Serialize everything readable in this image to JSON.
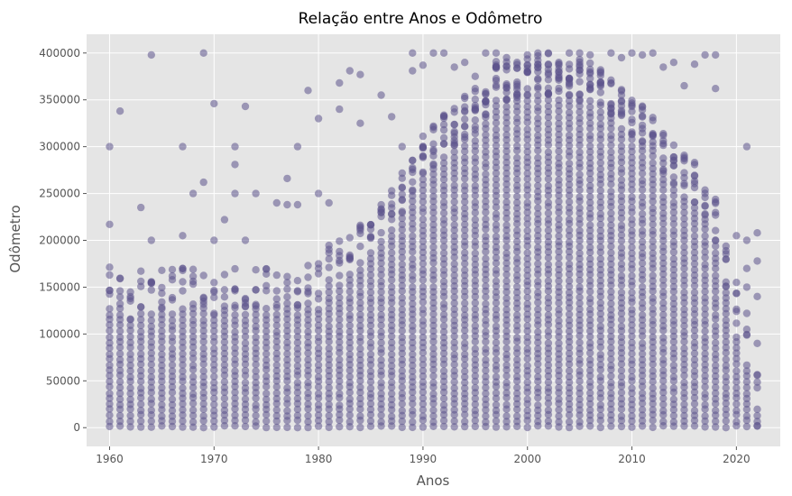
{
  "chart_data": {
    "type": "scatter",
    "title": "Relação entre Anos e Odômetro",
    "xlabel": "Anos",
    "ylabel": "Odômetro",
    "xlim": [
      1957.8,
      2024.2
    ],
    "ylim": [
      -20000,
      420000
    ],
    "xticks": [
      1960,
      1970,
      1980,
      1990,
      2000,
      2010,
      2020
    ],
    "yticks": [
      0,
      50000,
      100000,
      150000,
      200000,
      250000,
      300000,
      350000,
      400000
    ],
    "xtick_labels": [
      "1960",
      "1970",
      "1980",
      "1990",
      "2000",
      "2010",
      "2020"
    ],
    "ytick_labels": [
      "0",
      "50000",
      "100000",
      "150000",
      "200000",
      "250000",
      "300000",
      "350000",
      "400000"
    ],
    "grid": true,
    "style": "ggplot",
    "marker_color": "#5c548c",
    "marker_alpha": 0.55,
    "series": [
      {
        "column_ranges": [
          {
            "year": 1960,
            "max": 130000
          },
          {
            "year": 1961,
            "max": 128000
          },
          {
            "year": 1962,
            "max": 115000
          },
          {
            "year": 1963,
            "max": 125000
          },
          {
            "year": 1964,
            "max": 125000
          },
          {
            "year": 1965,
            "max": 128000
          },
          {
            "year": 1966,
            "max": 125000
          },
          {
            "year": 1967,
            "max": 128000
          },
          {
            "year": 1968,
            "max": 128000
          },
          {
            "year": 1969,
            "max": 128000
          },
          {
            "year": 1970,
            "max": 120000
          },
          {
            "year": 1971,
            "max": 125000
          },
          {
            "year": 1972,
            "max": 128000
          },
          {
            "year": 1973,
            "max": 125000
          },
          {
            "year": 1974,
            "max": 128000
          },
          {
            "year": 1975,
            "max": 130000
          },
          {
            "year": 1976,
            "max": 125000
          },
          {
            "year": 1977,
            "max": 128000
          },
          {
            "year": 1978,
            "max": 130000
          },
          {
            "year": 1979,
            "max": 135000
          },
          {
            "year": 1980,
            "max": 130000
          },
          {
            "year": 1981,
            "max": 150000
          },
          {
            "year": 1982,
            "max": 155000
          },
          {
            "year": 1983,
            "max": 165000
          },
          {
            "year": 1984,
            "max": 175000
          },
          {
            "year": 1985,
            "max": 190000
          },
          {
            "year": 1986,
            "max": 200000
          },
          {
            "year": 1987,
            "max": 210000
          },
          {
            "year": 1988,
            "max": 230000
          },
          {
            "year": 1989,
            "max": 250000
          },
          {
            "year": 1990,
            "max": 270000
          },
          {
            "year": 1991,
            "max": 280000
          },
          {
            "year": 1992,
            "max": 290000
          },
          {
            "year": 1993,
            "max": 300000
          },
          {
            "year": 1994,
            "max": 310000
          },
          {
            "year": 1995,
            "max": 320000
          },
          {
            "year": 1996,
            "max": 330000
          },
          {
            "year": 1997,
            "max": 350000
          },
          {
            "year": 1998,
            "max": 350000
          },
          {
            "year": 1999,
            "max": 350000
          },
          {
            "year": 2000,
            "max": 350000
          },
          {
            "year": 2001,
            "max": 355000
          },
          {
            "year": 2002,
            "max": 355000
          },
          {
            "year": 2003,
            "max": 350000
          },
          {
            "year": 2004,
            "max": 350000
          },
          {
            "year": 2005,
            "max": 350000
          },
          {
            "year": 2006,
            "max": 345000
          },
          {
            "year": 2007,
            "max": 340000
          },
          {
            "year": 2008,
            "max": 330000
          },
          {
            "year": 2009,
            "max": 320000
          },
          {
            "year": 2010,
            "max": 310000
          },
          {
            "year": 2011,
            "max": 300000
          },
          {
            "year": 2012,
            "max": 290000
          },
          {
            "year": 2013,
            "max": 270000
          },
          {
            "year": 2014,
            "max": 260000
          },
          {
            "year": 2015,
            "max": 250000
          },
          {
            "year": 2016,
            "max": 240000
          },
          {
            "year": 2017,
            "max": 220000
          },
          {
            "year": 2018,
            "max": 200000
          },
          {
            "year": 2019,
            "max": 150000
          },
          {
            "year": 2020,
            "max": 100000
          },
          {
            "year": 2021,
            "max": 60000
          },
          {
            "year": 2022,
            "max": 20000
          }
        ],
        "outliers": [
          [
            1960,
            300000
          ],
          [
            1960,
            217000
          ],
          [
            1961,
            338000
          ],
          [
            1963,
            235000
          ],
          [
            1964,
            398000
          ],
          [
            1964,
            200000
          ],
          [
            1967,
            300000
          ],
          [
            1967,
            205000
          ],
          [
            1968,
            250000
          ],
          [
            1969,
            400000
          ],
          [
            1969,
            262000
          ],
          [
            1970,
            346000
          ],
          [
            1970,
            200000
          ],
          [
            1971,
            222000
          ],
          [
            1972,
            300000
          ],
          [
            1972,
            281000
          ],
          [
            1972,
            250000
          ],
          [
            1973,
            343000
          ],
          [
            1973,
            200000
          ],
          [
            1974,
            250000
          ],
          [
            1976,
            240000
          ],
          [
            1977,
            266000
          ],
          [
            1977,
            238000
          ],
          [
            1978,
            300000
          ],
          [
            1978,
            238000
          ],
          [
            1979,
            360000
          ],
          [
            1980,
            330000
          ],
          [
            1980,
            250000
          ],
          [
            1981,
            240000
          ],
          [
            1982,
            340000
          ],
          [
            1982,
            368000
          ],
          [
            1983,
            381000
          ],
          [
            1984,
            377000
          ],
          [
            1984,
            325000
          ],
          [
            1986,
            355000
          ],
          [
            1987,
            332000
          ],
          [
            1988,
            300000
          ],
          [
            1989,
            400000
          ],
          [
            1989,
            381000
          ],
          [
            1990,
            387000
          ],
          [
            1991,
            400000
          ],
          [
            1992,
            400000
          ],
          [
            1993,
            385000
          ],
          [
            1994,
            390000
          ],
          [
            1995,
            375000
          ],
          [
            1996,
            400000
          ],
          [
            1997,
            400000
          ],
          [
            1998,
            395000
          ],
          [
            1999,
            390000
          ],
          [
            2000,
            398000
          ],
          [
            2001,
            400000
          ],
          [
            2002,
            400000
          ],
          [
            2003,
            390000
          ],
          [
            2004,
            400000
          ],
          [
            2005,
            400000
          ],
          [
            2006,
            398000
          ],
          [
            2007,
            380000
          ],
          [
            2008,
            400000
          ],
          [
            2009,
            395000
          ],
          [
            2010,
            400000
          ],
          [
            2011,
            398000
          ],
          [
            2012,
            400000
          ],
          [
            2013,
            385000
          ],
          [
            2014,
            390000
          ],
          [
            2015,
            365000
          ],
          [
            2016,
            388000
          ],
          [
            2017,
            398000
          ],
          [
            2018,
            398000
          ],
          [
            2018,
            362000
          ],
          [
            2019,
            180000
          ],
          [
            2020,
            205000
          ],
          [
            2020,
            155000
          ],
          [
            2021,
            300000
          ],
          [
            2021,
            200000
          ],
          [
            2021,
            170000
          ],
          [
            2021,
            150000
          ],
          [
            2021,
            122000
          ],
          [
            2022,
            208000
          ],
          [
            2022,
            178000
          ],
          [
            2022,
            140000
          ],
          [
            2022,
            90000
          ],
          [
            2022,
            56000
          ],
          [
            2022,
            2000
          ]
        ]
      }
    ]
  }
}
